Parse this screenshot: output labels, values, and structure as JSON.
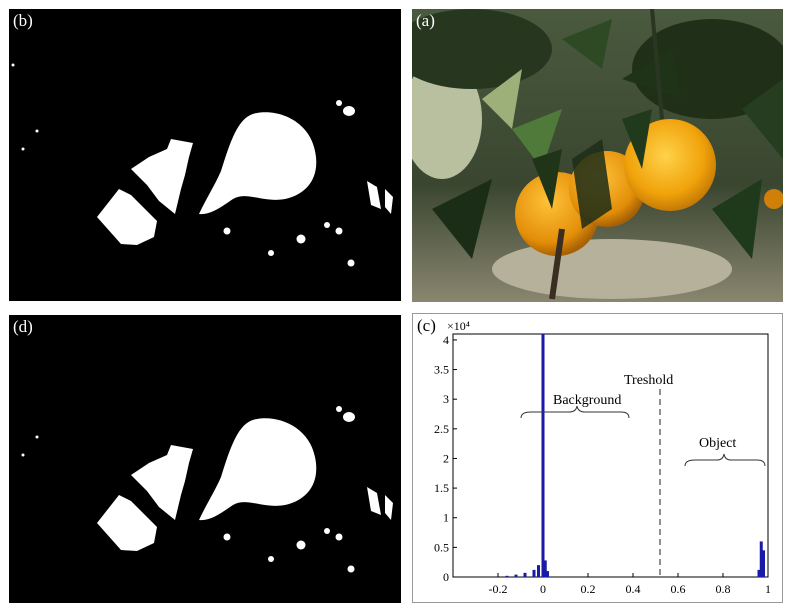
{
  "panels": {
    "b": {
      "label": "(b)"
    },
    "a": {
      "label": "(a)"
    },
    "d": {
      "label": "(d)"
    },
    "c": {
      "label": "(c)"
    }
  },
  "histogram": {
    "exponent_label": "×10⁴",
    "annotations": {
      "threshold": "Treshold",
      "background": "Background",
      "object": "Object"
    },
    "colors": {
      "bars": "#1a1aa8",
      "threshold_line": "#555555"
    }
  },
  "chart_data": {
    "type": "bar",
    "title": "",
    "xlabel": "",
    "ylabel": "",
    "xlim": [
      -0.4,
      1.0
    ],
    "ylim": [
      0,
      4.1
    ],
    "x_ticks": [
      "-0.2",
      "0",
      "0.2",
      "0.4",
      "0.6",
      "0.8",
      "1"
    ],
    "y_ticks": [
      "0",
      "0.5",
      "1",
      "1.5",
      "2",
      "2.5",
      "3",
      "3.5",
      "4"
    ],
    "y_multiplier": "10^4",
    "threshold_x": 0.52,
    "series": [
      {
        "x": [
          -0.16,
          -0.12,
          -0.08,
          -0.04,
          -0.02,
          0.0,
          0.01,
          0.02,
          0.96,
          0.97,
          0.98
        ],
        "values": [
          0.02,
          0.04,
          0.07,
          0.12,
          0.2,
          4.1,
          0.28,
          0.1,
          0.12,
          0.6,
          0.45
        ]
      }
    ]
  }
}
